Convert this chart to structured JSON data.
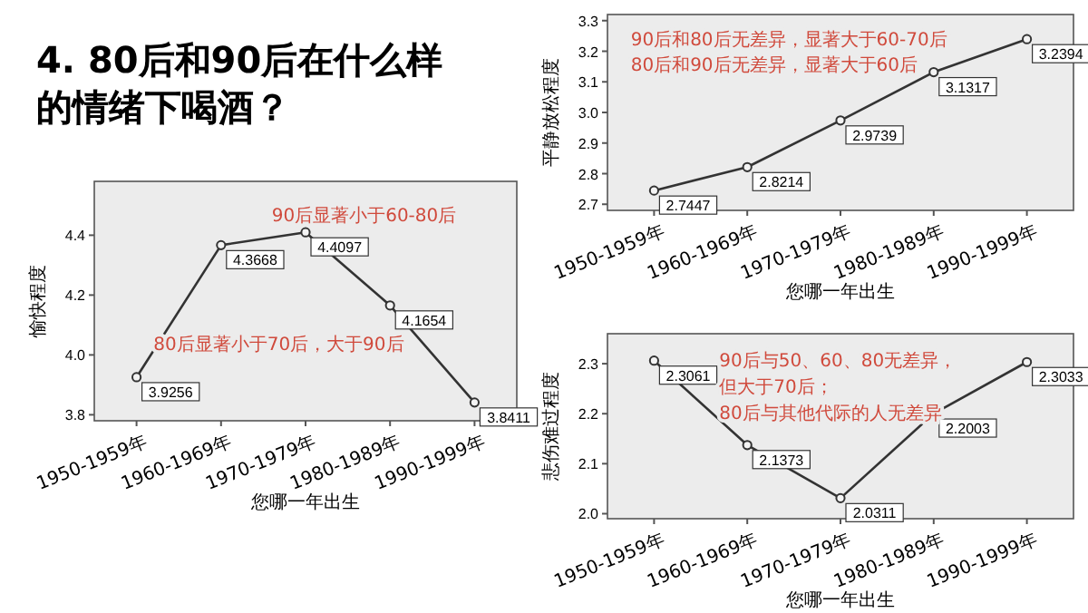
{
  "chart_data": [
    {
      "type": "line",
      "title": "4.  80后和90后在什么样的情绪下喝酒？",
      "categories": [
        "1950-1959年",
        "1960-1969年",
        "1970-1979年",
        "1980-1989年",
        "1990-1999年"
      ],
      "series": [
        {
          "color": "#333333",
          "values": [
            3.9256,
            4.3668,
            4.4097,
            4.1654,
            3.8411
          ]
        }
      ],
      "ylim": [
        3.78,
        4.58
      ],
      "yticks": [
        3.8,
        {
          "value": 4,
          "label": "4.0"
        },
        4.2,
        4.4
      ],
      "xlabel": "您哪一年出生",
      "ylabel": "愉快程度",
      "annotations": [
        "90后显著小于60-80后",
        "80后显著小于70后，大于90后"
      ],
      "data_labels": true,
      "marker": "circle"
    },
    {
      "type": "line",
      "categories": [
        "1950-1959年",
        "1960-1969年",
        "1970-1979年",
        "1980-1989年",
        "1990-1999年"
      ],
      "series": [
        {
          "color": "#333333",
          "values": [
            2.7447,
            2.8214,
            2.9739,
            3.1317,
            3.2394
          ]
        }
      ],
      "ylim": [
        2.68,
        3.32
      ],
      "yticks": [
        2.7,
        2.8,
        2.9,
        {
          "value": 3,
          "label": "3.0"
        },
        3.1,
        3.2,
        3.3
      ],
      "xlabel": "您哪一年出生",
      "ylabel": "平静放松程度",
      "annotations": [
        "90后和80后无差异，显著大于60-70后",
        "80后和90后无差异，显著大于60后"
      ],
      "data_labels": true,
      "marker": "circle"
    },
    {
      "type": "line",
      "categories": [
        "1950-1959年",
        "1960-1969年",
        "1970-1979年",
        "1980-1989年",
        "1990-1999年"
      ],
      "series": [
        {
          "color": "#333333",
          "values": [
            2.3061,
            2.1373,
            2.0311,
            2.2003,
            2.3033
          ]
        }
      ],
      "ylim": [
        1.99,
        2.36
      ],
      "yticks": [
        {
          "value": 2,
          "label": "2.0"
        },
        2.1,
        2.2,
        2.3
      ],
      "xlabel": "您哪一年出生",
      "ylabel": "悲伤难过程度",
      "annotations": [
        "90后与50、60、80无差异，",
        "但大于70后；",
        "80后与其他代际的人无差异"
      ],
      "data_labels": true,
      "marker": "circle"
    }
  ]
}
